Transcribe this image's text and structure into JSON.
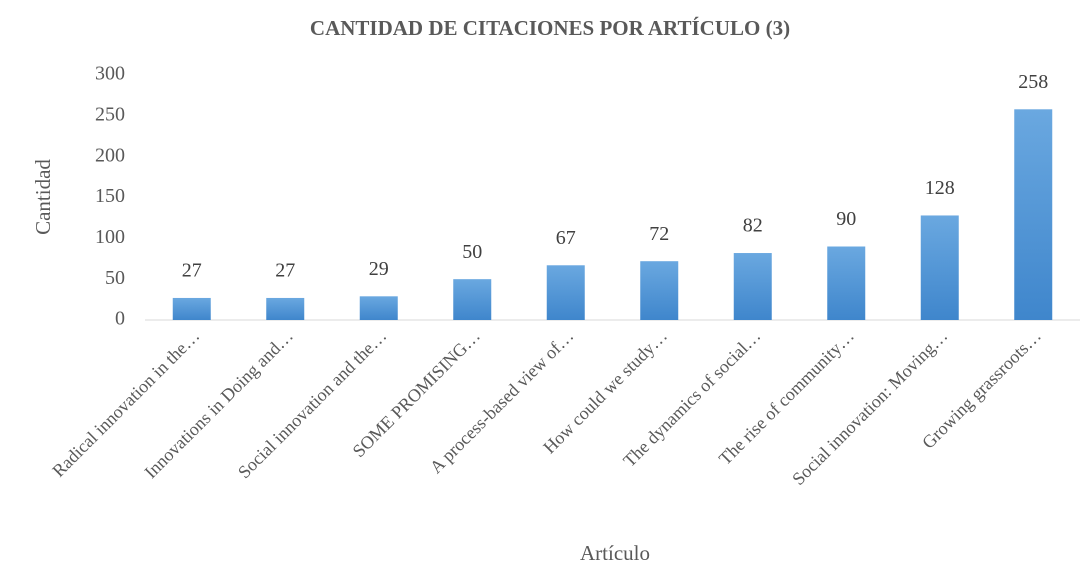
{
  "chart_data": {
    "type": "bar",
    "title": "CANTIDAD DE CITACIONES POR ARTÍCULO (3)",
    "x_label": "Artículo",
    "y_label": "Cantidad",
    "categories": [
      "Radical innovation in the…",
      "Innovations in Doing and…",
      "Social innovation and the…",
      "SOME PROMISING…",
      "A process-based view of…",
      "How could we study…",
      "The dynamics of social…",
      "The rise of community…",
      "Social innovation: Moving…",
      "Growing grassroots…"
    ],
    "values": [
      27,
      27,
      29,
      50,
      67,
      72,
      82,
      90,
      128,
      258
    ],
    "color": "#5b9bd5",
    "ylim": [
      0,
      300
    ],
    "yticks": [
      0,
      50,
      100,
      150,
      200,
      250,
      300
    ],
    "grid": false
  }
}
